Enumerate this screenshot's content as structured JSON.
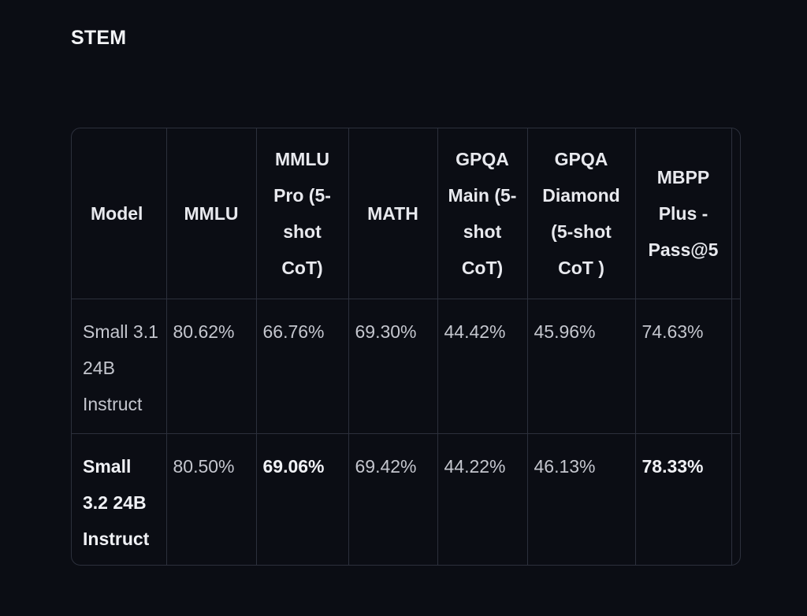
{
  "section": {
    "title": "STEM"
  },
  "table": {
    "headers": [
      "Model",
      "MMLU",
      "MMLU Pro (5-shot CoT)",
      "MATH",
      "GPQA Main (5-shot CoT)",
      "GPQA Diamond (5-shot CoT )",
      "MBPP Plus - Pass@5"
    ],
    "rows": [
      {
        "model": "Small 3.1 24B Instruct",
        "model_bold": false,
        "values": [
          "80.62%",
          "66.76%",
          "69.30%",
          "44.42%",
          "45.96%",
          "74.63%"
        ],
        "bold": [
          false,
          false,
          false,
          false,
          false,
          false
        ]
      },
      {
        "model": "Small 3.2 24B Instruct",
        "model_bold": true,
        "values": [
          "80.50%",
          "69.06%",
          "69.42%",
          "44.22%",
          "46.13%",
          "78.33%"
        ],
        "bold": [
          false,
          true,
          false,
          false,
          false,
          true
        ]
      }
    ]
  }
}
